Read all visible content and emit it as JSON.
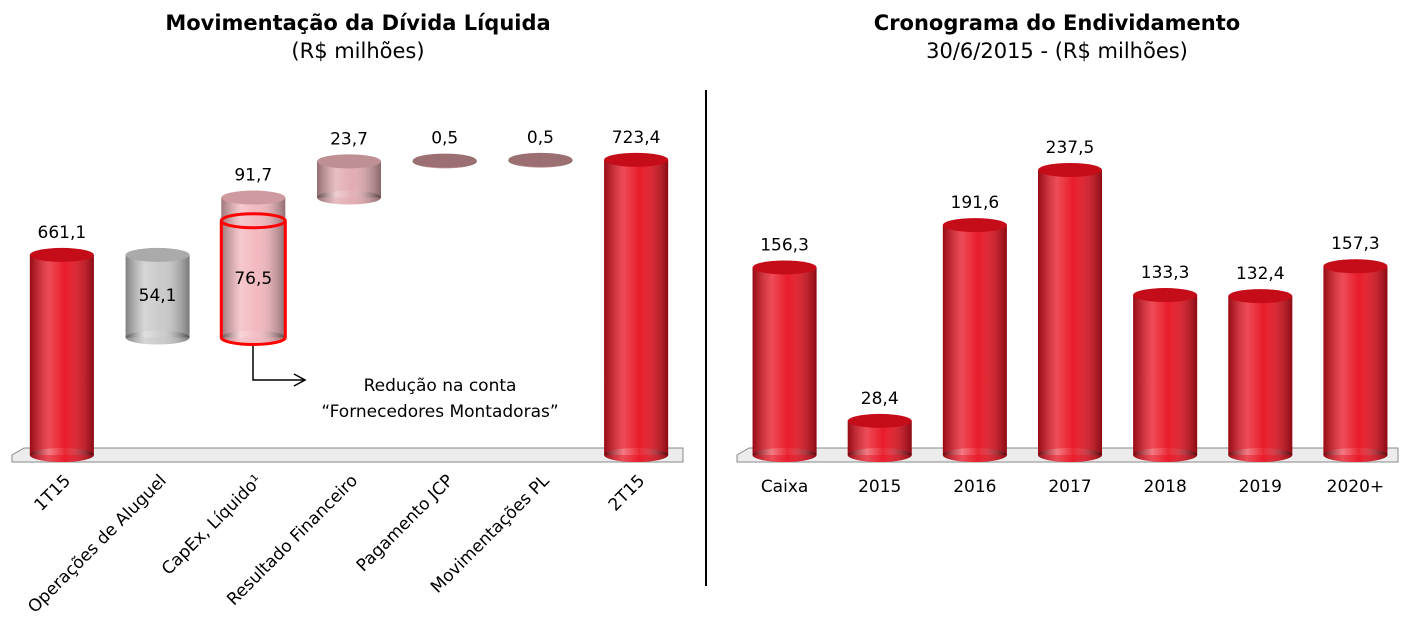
{
  "chart_data": [
    {
      "type": "waterfall",
      "title": "Movimentação da Dívida Líquida",
      "subtitle": "(R$ milhões)",
      "categories": [
        "1T15",
        "Operações de Aluguel",
        "CapEx, Líquido¹",
        "Resultado Financeiro",
        "Pagamento JCP",
        "Movimentações PL",
        "2T15"
      ],
      "values": [
        661.1,
        54.1,
        91.7,
        23.7,
        0.5,
        0.5,
        723.4
      ],
      "value_labels": [
        "661,1",
        "54,1",
        "91,7",
        "23,7",
        "0,5",
        "0,5",
        "723,4"
      ],
      "measure": [
        "total",
        "decrease",
        "increase",
        "increase",
        "increase",
        "increase",
        "total"
      ],
      "colors": [
        "#e8101f",
        "#c8c8c8",
        "#f2b6bc",
        "#e0a8ad",
        "#b88486",
        "#b88486",
        "#e8101f"
      ],
      "highlight": {
        "category": 2,
        "value": 76.5,
        "label": "76,5",
        "color": "#ff0000"
      },
      "annotation": [
        "Redução na conta",
        "“Fornecedores Montadoras”"
      ],
      "ylim": [
        530,
        760
      ]
    },
    {
      "type": "bar",
      "title": "Cronograma do Endividamento",
      "subtitle": "30/6/2015 - (R$ milhões)",
      "categories": [
        "Caixa",
        "2015",
        "2016",
        "2017",
        "2018",
        "2019",
        "2020+"
      ],
      "values": [
        156.3,
        28.4,
        191.6,
        237.5,
        133.3,
        132.4,
        157.3
      ],
      "value_labels": [
        "156,3",
        "28,4",
        "191,6",
        "237,5",
        "133,3",
        "132,4",
        "157,3"
      ],
      "color": "#e8101f",
      "ylim": [
        0,
        300
      ]
    }
  ]
}
